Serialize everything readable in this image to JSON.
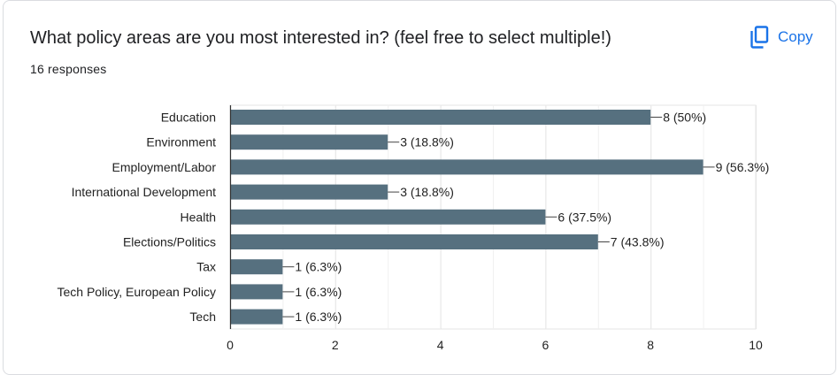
{
  "card": {
    "title": "What policy areas are you most interested in? (feel free to select multiple!)",
    "responses": "16 responses",
    "copy_label": "Copy",
    "copy_icon": "copy-icon"
  },
  "colors": {
    "bar": "#56707f",
    "accent": "#1a73e8",
    "grid": "#e6e6e6",
    "axis": "#333333",
    "text": "#222222"
  },
  "chart_data": {
    "type": "bar",
    "orientation": "horizontal",
    "categories": [
      "Education",
      "Environment",
      "Employment/Labor",
      "International Development",
      "Health",
      "Elections/Politics",
      "Tax",
      "Tech Policy, European Policy",
      "Tech"
    ],
    "values": [
      8,
      3,
      9,
      3,
      6,
      7,
      1,
      1,
      1
    ],
    "data_labels": [
      "8 (50%)",
      "3 (18.8%)",
      "9 (56.3%)",
      "3 (18.8%)",
      "6 (37.5%)",
      "7 (43.8%)",
      "1 (6.3%)",
      "1 (6.3%)",
      "1 (6.3%)"
    ],
    "xlim": [
      0,
      10
    ],
    "xticks": [
      0,
      2,
      4,
      6,
      8,
      10
    ],
    "grid": true,
    "legend": "none"
  }
}
